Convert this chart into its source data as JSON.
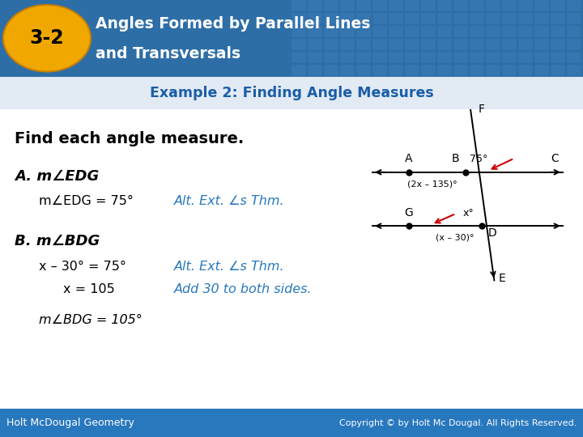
{
  "header_bg_color": "#2E6EA6",
  "header_text_color": "#FFFFFF",
  "badge_bg_color": "#F0A800",
  "badge_text": "3-2",
  "header_line1": "Angles Formed by Parallel Lines",
  "header_line2": "and Transversals",
  "subtitle": "Example 2: Finding Angle Measures",
  "subtitle_color": "#1A5EA8",
  "body_bg_color": "#FFFFFF",
  "find_text": "Find each angle measure.",
  "part_a_label": "A. m∠EDG",
  "part_a_answer_black": "m∠EDG = 75°",
  "part_a_reason": "Alt. Ext. ∠s Thm.",
  "part_b_label": "B. m∠BDG",
  "part_b_step1_black": "x – 30° = 75°",
  "part_b_step1_blue": "Alt. Ext. ∠s Thm.",
  "part_b_step2_black": "x = 105",
  "part_b_step2_blue": "Add 30 to both sides.",
  "part_b_answer": "m∠BDG = 105°",
  "footer_left": "Holt McDougal Geometry",
  "footer_right": "Copyright © by Holt Mc Dougal. All Rights Reserved.",
  "footer_bg": "#2878BE",
  "text_dark": "#000000",
  "text_blue": "#2878BE",
  "red_arrow": "#CC0000",
  "diag_lw": 1.4
}
